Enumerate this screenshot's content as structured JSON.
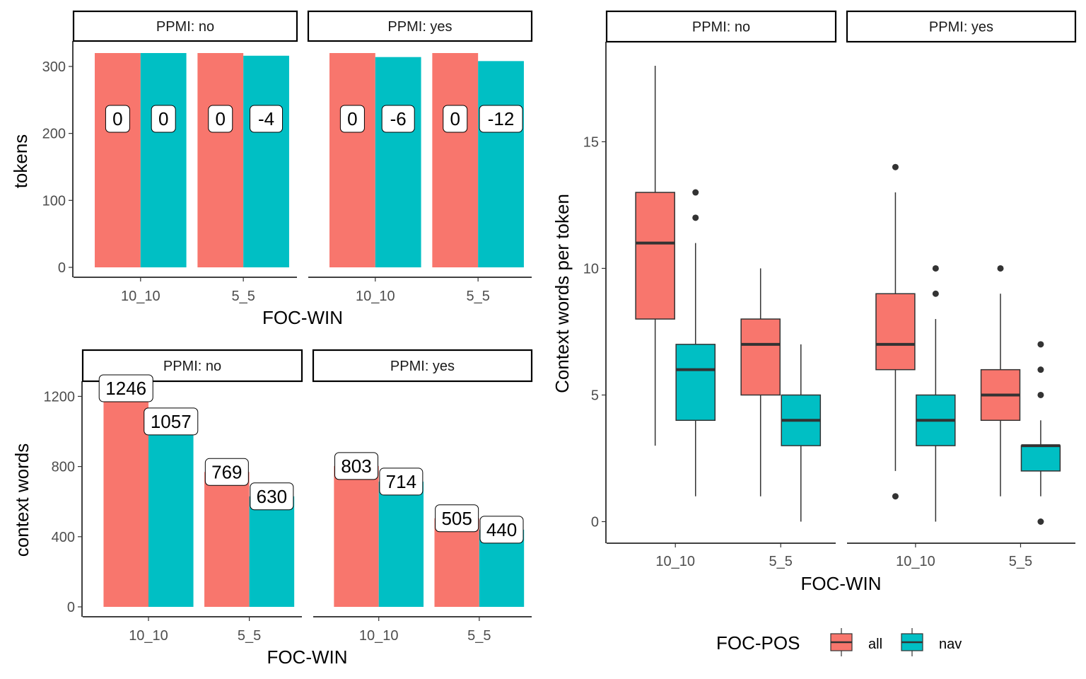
{
  "colors": {
    "all": "#F8766D",
    "nav": "#00BFC4",
    "box_line": "#333333"
  },
  "legend": {
    "title": "FOC-POS",
    "items": [
      {
        "label": "all",
        "color": "#F8766D"
      },
      {
        "label": "nav",
        "color": "#00BFC4"
      }
    ]
  },
  "chart_data": [
    {
      "type": "bar",
      "ylabel": "tokens",
      "xlabel": "FOC-WIN",
      "categories": [
        "10_10",
        "5_5"
      ],
      "ylim": [
        0,
        320
      ],
      "yticks": [
        0,
        100,
        200,
        300
      ],
      "panels": [
        {
          "strip": "PPMI: no",
          "series": [
            {
              "name": "all",
              "values": [
                320,
                320
              ],
              "labels": [
                "0",
                "0"
              ]
            },
            {
              "name": "nav",
              "values": [
                320,
                316
              ],
              "labels": [
                "0",
                "-4"
              ]
            }
          ]
        },
        {
          "strip": "PPMI: yes",
          "series": [
            {
              "name": "all",
              "values": [
                320,
                320
              ],
              "labels": [
                "0",
                "0"
              ]
            },
            {
              "name": "nav",
              "values": [
                314,
                308
              ],
              "labels": [
                "-6",
                "-12"
              ]
            }
          ]
        }
      ]
    },
    {
      "type": "bar",
      "ylabel": "context words",
      "xlabel": "FOC-WIN",
      "categories": [
        "10_10",
        "5_5"
      ],
      "ylim": [
        0,
        1246
      ],
      "yticks": [
        0,
        400,
        800,
        1200
      ],
      "panels": [
        {
          "strip": "PPMI: no",
          "series": [
            {
              "name": "all",
              "values": [
                1246,
                769
              ],
              "labels": [
                "1246",
                "769"
              ]
            },
            {
              "name": "nav",
              "values": [
                1057,
                630
              ],
              "labels": [
                "1057",
                "630"
              ]
            }
          ]
        },
        {
          "strip": "PPMI: yes",
          "series": [
            {
              "name": "all",
              "values": [
                803,
                505
              ],
              "labels": [
                "803",
                "505"
              ]
            },
            {
              "name": "nav",
              "values": [
                714,
                440
              ],
              "labels": [
                "714",
                "440"
              ]
            }
          ]
        }
      ]
    },
    {
      "type": "box",
      "ylabel": "Context words per token",
      "xlabel": "FOC-WIN",
      "categories": [
        "10_10",
        "5_5"
      ],
      "ylim": [
        0,
        18
      ],
      "yticks": [
        0,
        5,
        10,
        15
      ],
      "panels": [
        {
          "strip": "PPMI: no",
          "boxes": [
            {
              "category": "10_10",
              "series": "all",
              "whisker_low": 3,
              "q1": 8,
              "median": 11,
              "q3": 13,
              "whisker_high": 18,
              "outliers": []
            },
            {
              "category": "10_10",
              "series": "nav",
              "whisker_low": 1,
              "q1": 4,
              "median": 6,
              "q3": 7,
              "whisker_high": 11,
              "outliers": [
                12,
                13
              ]
            },
            {
              "category": "5_5",
              "series": "all",
              "whisker_low": 1,
              "q1": 5,
              "median": 7,
              "q3": 8,
              "whisker_high": 10,
              "outliers": []
            },
            {
              "category": "5_5",
              "series": "nav",
              "whisker_low": 0,
              "q1": 3,
              "median": 4,
              "q3": 5,
              "whisker_high": 7,
              "outliers": []
            }
          ]
        },
        {
          "strip": "PPMI: yes",
          "boxes": [
            {
              "category": "10_10",
              "series": "all",
              "whisker_low": 2,
              "q1": 6,
              "median": 7,
              "q3": 9,
              "whisker_high": 13,
              "outliers": [
                1,
                14
              ]
            },
            {
              "category": "10_10",
              "series": "nav",
              "whisker_low": 0,
              "q1": 3,
              "median": 4,
              "q3": 5,
              "whisker_high": 8,
              "outliers": [
                9,
                10
              ]
            },
            {
              "category": "5_5",
              "series": "all",
              "whisker_low": 1,
              "q1": 4,
              "median": 5,
              "q3": 6,
              "whisker_high": 9,
              "outliers": [
                10
              ]
            },
            {
              "category": "5_5",
              "series": "nav",
              "whisker_low": 1,
              "q1": 2,
              "median": 3,
              "q3": 3,
              "whisker_high": 4,
              "outliers": [
                0,
                5,
                6,
                7
              ]
            }
          ]
        }
      ]
    }
  ]
}
